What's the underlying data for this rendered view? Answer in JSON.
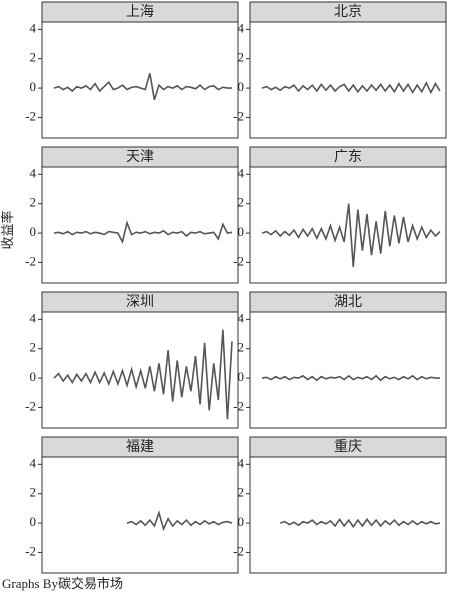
{
  "y_label": "收益率",
  "note": "Graphs By碳交易市场",
  "chart_data": [
    {
      "type": "line",
      "title": "上海",
      "color": "#555555",
      "ylim": [
        -3.4,
        4.5
      ],
      "yticks": [
        -2,
        0,
        2,
        4
      ],
      "values": [
        0,
        0.1,
        -0.1,
        0.05,
        -0.2,
        0.1,
        0,
        0.15,
        -0.1,
        0.3,
        -0.2,
        0.1,
        0.4,
        -0.1,
        0,
        0.2,
        -0.1,
        0.05,
        0.1,
        0,
        -0.1,
        1.0,
        -0.8,
        0.2,
        -0.1,
        0.1,
        0,
        0.15,
        -0.1,
        0.1,
        0.05,
        -0.05,
        0.2,
        -0.1,
        0.1,
        0.15,
        -0.1,
        0.05,
        0,
        0
      ]
    },
    {
      "type": "line",
      "title": "北京",
      "color": "#555555",
      "ylim": [
        -3.4,
        4.5
      ],
      "yticks": [
        -2,
        0,
        2,
        4
      ],
      "values": [
        0,
        0.1,
        -0.1,
        0.05,
        -0.15,
        0.1,
        0,
        0.2,
        -0.2,
        0.15,
        -0.1,
        0.2,
        -0.2,
        0.25,
        -0.15,
        0.2,
        -0.2,
        0.1,
        0.25,
        -0.2,
        0.2,
        -0.25,
        0.15,
        -0.2,
        0.2,
        -0.15,
        0.25,
        -0.2,
        0.2,
        -0.25,
        0.3,
        -0.2,
        0.25,
        -0.3,
        0.2,
        -0.25,
        0.35,
        -0.3,
        0.3,
        -0.2
      ]
    },
    {
      "type": "line",
      "title": "天津",
      "color": "#555555",
      "ylim": [
        -3.4,
        4.5
      ],
      "yticks": [
        -2,
        0,
        2,
        4
      ],
      "values": [
        0,
        0.05,
        -0.05,
        0.1,
        -0.1,
        0.05,
        0,
        0.1,
        -0.05,
        0.05,
        0,
        -0.1,
        0.1,
        0.05,
        0,
        -0.6,
        0.7,
        -0.1,
        0.05,
        0,
        0.1,
        -0.05,
        0.05,
        0,
        0.15,
        -0.1,
        0.05,
        0,
        0.1,
        -0.2,
        0.05,
        0,
        0.1,
        -0.05,
        0,
        0.05,
        -0.4,
        0.6,
        0,
        0.05
      ]
    },
    {
      "type": "line",
      "title": "广东",
      "color": "#555555",
      "ylim": [
        -3.4,
        4.5
      ],
      "yticks": [
        -2,
        0,
        2,
        4
      ],
      "values": [
        0,
        0.1,
        -0.1,
        0.15,
        -0.2,
        0.1,
        -0.15,
        0.2,
        -0.3,
        0.25,
        -0.2,
        0.3,
        -0.35,
        0.3,
        -0.4,
        0.5,
        -0.5,
        0.4,
        -0.6,
        2.0,
        -2.3,
        1.6,
        -1.2,
        1.3,
        -1.5,
        0.8,
        -1.4,
        1.5,
        -0.9,
        1.2,
        -0.7,
        1.1,
        -0.6,
        0.5,
        -0.4,
        0.4,
        -0.3,
        0.2,
        -0.2,
        0.1
      ]
    },
    {
      "type": "line",
      "title": "深圳",
      "color": "#555555",
      "ylim": [
        -3.4,
        4.5
      ],
      "yticks": [
        -2,
        0,
        2,
        4
      ],
      "values": [
        0,
        0.3,
        -0.2,
        0.2,
        -0.3,
        0.25,
        -0.2,
        0.3,
        -0.3,
        0.4,
        -0.3,
        0.35,
        -0.4,
        0.45,
        -0.4,
        0.5,
        -0.5,
        0.6,
        -0.6,
        0.5,
        -0.7,
        0.8,
        -0.9,
        1.0,
        -1.1,
        1.9,
        -1.6,
        1.2,
        -1.3,
        0.8,
        -0.9,
        1.5,
        -1.8,
        2.4,
        -2.2,
        1.0,
        -1.5,
        3.3,
        -2.8,
        2.5
      ]
    },
    {
      "type": "line",
      "title": "湖北",
      "color": "#555555",
      "ylim": [
        -3.4,
        4.5
      ],
      "yticks": [
        -2,
        0,
        2,
        4
      ],
      "values": [
        0,
        0.05,
        -0.1,
        0.1,
        -0.05,
        0.1,
        -0.1,
        0.05,
        0,
        0.15,
        -0.1,
        0.1,
        -0.15,
        0.1,
        -0.05,
        0.05,
        0,
        0.1,
        -0.1,
        0.15,
        -0.1,
        0.05,
        -0.05,
        0.1,
        -0.1,
        0.15,
        -0.15,
        0.1,
        -0.05,
        0.05,
        -0.1,
        0.1,
        -0.05,
        0.15,
        -0.1,
        0.1,
        -0.05,
        0.05,
        0,
        0
      ]
    },
    {
      "type": "line",
      "title": "福建",
      "color": "#555555",
      "ylim": [
        -3.4,
        4.5
      ],
      "yticks": [
        -2,
        0,
        2,
        4
      ],
      "values": [
        null,
        null,
        null,
        null,
        null,
        null,
        null,
        null,
        null,
        null,
        null,
        null,
        null,
        null,
        null,
        null,
        0,
        0.1,
        -0.1,
        0.15,
        -0.15,
        0.2,
        -0.2,
        0.7,
        -0.4,
        0.3,
        -0.2,
        0.15,
        -0.1,
        0.2,
        -0.15,
        0.1,
        -0.1,
        0.15,
        -0.05,
        0.1,
        -0.1,
        0.05,
        0.1,
        0
      ]
    },
    {
      "type": "line",
      "title": "重庆",
      "color": "#555555",
      "ylim": [
        -3.4,
        4.5
      ],
      "yticks": [
        -2,
        0,
        2,
        4
      ],
      "values": [
        null,
        null,
        null,
        null,
        0,
        0.1,
        -0.1,
        0.05,
        -0.15,
        0.1,
        0,
        0.2,
        -0.1,
        0.1,
        -0.05,
        0.15,
        -0.2,
        0.25,
        -0.2,
        0.2,
        -0.25,
        0.2,
        -0.2,
        0.25,
        -0.15,
        0.2,
        -0.2,
        0.15,
        -0.1,
        0.2,
        -0.15,
        0.1,
        -0.1,
        0.15,
        -0.1,
        0.1,
        -0.05,
        0.1,
        -0.05,
        0
      ]
    }
  ]
}
